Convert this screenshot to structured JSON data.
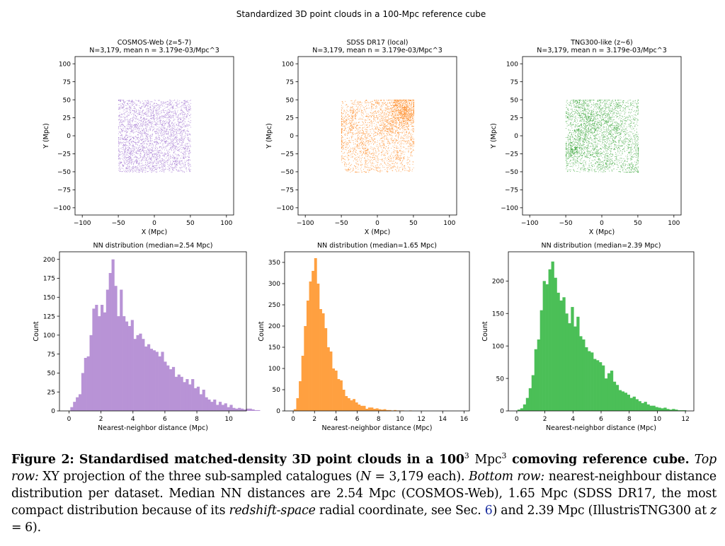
{
  "figure": {
    "suptitle": "Standardized 3D point clouds in a 100-Mpc reference cube",
    "panels": [
      {
        "title1": "COSMOS-Web (z=5-7)",
        "title2": "N=3,179, mean n = 3.179e-03/Mpc^3",
        "color": "#9966cc",
        "hist_color": "#b893d6"
      },
      {
        "title1": "SDSS DR17 (local)",
        "title2": "N=3,179, mean n = 3.179e-03/Mpc^3",
        "color": "#ff7f0e",
        "hist_color": "#ffa040"
      },
      {
        "title1": "TNG300-like (z~6)",
        "title2": "N=3,179, mean n = 3.179e-03/Mpc^3",
        "color": "#2ca02c",
        "hist_color": "#4bbf57"
      }
    ],
    "scatter_xlabel": "X (Mpc)",
    "scatter_ylabel": "Y (Mpc)",
    "hist_titles": [
      "NN distribution (median=2.54 Mpc)",
      "NN distribution (median=1.65 Mpc)",
      "NN distribution (median=2.39 Mpc)"
    ],
    "hist_xlabel": "Nearest-neighbor distance (Mpc)",
    "hist_ylabel": "Count"
  },
  "chart_data": [
    {
      "type": "scatter",
      "title": "COSMOS-Web (z=5-7)\nN=3,179, mean n = 3.179e-03/Mpc^3",
      "xlabel": "X (Mpc)",
      "ylabel": "Y (Mpc)",
      "xlim": [
        -110,
        110
      ],
      "ylim": [
        -110,
        110
      ],
      "xticks": [
        -100,
        -50,
        0,
        50,
        100
      ],
      "yticks": [
        -100,
        -75,
        -50,
        -25,
        0,
        25,
        50,
        75,
        100
      ],
      "n_points": 3179,
      "point_extent": [
        -50,
        50
      ],
      "color": "#9966cc"
    },
    {
      "type": "scatter",
      "title": "SDSS DR17 (local)\nN=3,179, mean n = 3.179e-03/Mpc^3",
      "xlabel": "X (Mpc)",
      "ylabel": "Y (Mpc)",
      "xlim": [
        -110,
        110
      ],
      "ylim": [
        -110,
        110
      ],
      "xticks": [
        -100,
        -50,
        0,
        50,
        100
      ],
      "yticks": [
        -100,
        -75,
        -50,
        -25,
        0,
        25,
        50,
        75,
        100
      ],
      "n_points": 3179,
      "point_extent": [
        -50,
        50
      ],
      "color": "#ff7f0e"
    },
    {
      "type": "scatter",
      "title": "TNG300-like (z~6)\nN=3,179, mean n = 3.179e-03/Mpc^3",
      "xlabel": "X (Mpc)",
      "ylabel": "Y (Mpc)",
      "xlim": [
        -110,
        110
      ],
      "ylim": [
        -110,
        110
      ],
      "xticks": [
        -100,
        -50,
        0,
        50,
        100
      ],
      "yticks": [
        -100,
        -75,
        -50,
        -25,
        0,
        25,
        50,
        75,
        100
      ],
      "n_points": 3179,
      "point_extent": [
        -50,
        50
      ],
      "color": "#2ca02c"
    },
    {
      "type": "bar",
      "title": "NN distribution (median=2.54 Mpc)",
      "xlabel": "Nearest-neighbor distance (Mpc)",
      "ylabel": "Count",
      "xlim": [
        -0.6,
        11.1
      ],
      "ylim": [
        0,
        210
      ],
      "xticks": [
        0,
        2,
        4,
        6,
        8,
        10
      ],
      "yticks": [
        0,
        25,
        50,
        75,
        100,
        125,
        150,
        175,
        200
      ],
      "bin_start": 0.08,
      "bin_width": 0.172,
      "color": "#b893d6",
      "values": [
        5,
        12,
        18,
        22,
        50,
        70,
        72,
        100,
        135,
        140,
        125,
        140,
        130,
        160,
        182,
        200,
        165,
        125,
        160,
        125,
        118,
        112,
        120,
        95,
        100,
        102,
        95,
        85,
        88,
        82,
        80,
        78,
        72,
        78,
        65,
        60,
        55,
        58,
        45,
        48,
        45,
        38,
        42,
        35,
        42,
        30,
        32,
        22,
        28,
        18,
        15,
        12,
        15,
        8,
        12,
        8,
        10,
        5,
        8,
        4,
        3,
        4,
        3,
        2,
        3,
        3,
        2,
        1,
        1
      ]
    },
    {
      "type": "bar",
      "title": "NN distribution (median=1.65 Mpc)",
      "xlabel": "Nearest-neighbor distance (Mpc)",
      "ylabel": "Count",
      "xlim": [
        -0.8,
        16.5
      ],
      "ylim": [
        0,
        375
      ],
      "xticks": [
        0,
        2,
        4,
        6,
        8,
        10,
        12,
        14,
        16
      ],
      "yticks": [
        0,
        50,
        100,
        150,
        200,
        250,
        300,
        350
      ],
      "bin_start": 0.05,
      "bin_width": 0.24,
      "color": "#ffa040",
      "values": [
        4,
        30,
        70,
        130,
        200,
        260,
        305,
        330,
        360,
        300,
        240,
        230,
        195,
        150,
        140,
        100,
        95,
        75,
        72,
        50,
        35,
        30,
        25,
        28,
        20,
        15,
        12,
        12,
        5,
        8,
        8,
        5,
        6,
        4,
        3,
        4,
        2,
        2,
        1,
        2,
        1,
        1,
        1,
        0,
        0,
        1
      ]
    },
    {
      "type": "bar",
      "title": "NN distribution (median=2.39 Mpc)",
      "xlabel": "Nearest-neighbor distance (Mpc)",
      "ylabel": "Count",
      "xlim": [
        -0.6,
        12.6
      ],
      "ylim": [
        0,
        245
      ],
      "xticks": [
        0,
        2,
        4,
        6,
        8,
        10,
        12
      ],
      "yticks": [
        0,
        50,
        100,
        150,
        200
      ],
      "bin_start": 0.05,
      "bin_width": 0.2,
      "color": "#4bbf57",
      "values": [
        2,
        4,
        10,
        20,
        35,
        55,
        95,
        110,
        155,
        200,
        195,
        218,
        230,
        205,
        182,
        170,
        175,
        150,
        135,
        160,
        130,
        145,
        115,
        110,
        98,
        92,
        90,
        80,
        78,
        75,
        70,
        50,
        58,
        62,
        45,
        40,
        32,
        30,
        28,
        25,
        20,
        22,
        18,
        15,
        12,
        14,
        10,
        8,
        8,
        6,
        5,
        4,
        5,
        3,
        2,
        3,
        2,
        1,
        1,
        1
      ]
    }
  ],
  "caption": {
    "fig_label": "Figure 2:",
    "bold_title": "Standardised matched-density 3D point clouds in a 100",
    "sup3a": "3",
    "unit": "Mpc",
    "sup3b": "3",
    "bold_title_end": "comoving reference cube.",
    "top_row_label": "Top row:",
    "text1": "XY projection of the three sub-sampled catalogues (",
    "N_sym": "N",
    "text2": " = 3,179 each).",
    "bottom_row_label": "Bottom row:",
    "text3": "nearest-neighbour distance distribution per dataset. Median NN distances are 2.54 Mpc (COSMOS-Web), 1.65 Mpc (SDSS DR17, the most compact distribution because of its",
    "redshift_space": "redshift-space",
    "text4": "radial coordinate, see Sec.",
    "sec_ref": "6",
    "text5": ") and 2.39 Mpc (IllustrisTNG300 at",
    "z_sym": "z",
    "text6": " = 6)."
  }
}
